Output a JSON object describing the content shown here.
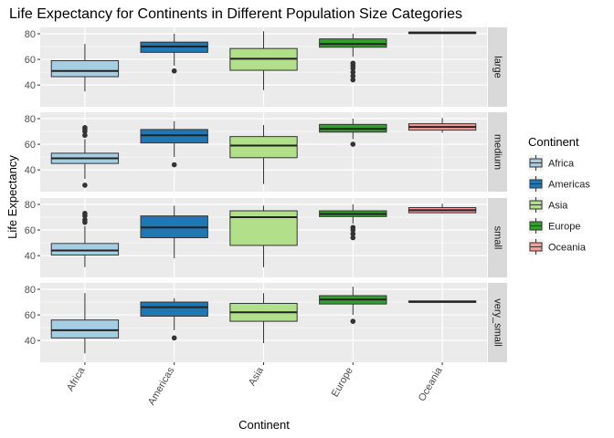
{
  "chart_data": {
    "type": "boxplot",
    "title": "Life Expectancy for Continents in Different Population Size Categories",
    "xlabel": "Continent",
    "ylabel": "Life Expectancy",
    "categories": [
      "Africa",
      "Americas",
      "Asia",
      "Europe",
      "Oceania"
    ],
    "y_ticks": [
      40,
      60,
      80
    ],
    "ylim": [
      23,
      85
    ],
    "grid": true,
    "legend": {
      "title": "Continent",
      "position": "right",
      "entries": [
        {
          "name": "Africa",
          "color": "#a6cee3"
        },
        {
          "name": "Americas",
          "color": "#1f78b4"
        },
        {
          "name": "Asia",
          "color": "#b2df8a"
        },
        {
          "name": "Europe",
          "color": "#33a02c"
        },
        {
          "name": "Oceania",
          "color": "#fb9a99"
        }
      ]
    },
    "facets": [
      {
        "label": "large",
        "boxes": [
          {
            "category": "Africa",
            "min": 35,
            "q1": 46.5,
            "median": 51,
            "q3": 59,
            "max": 72,
            "outliers": []
          },
          {
            "category": "Americas",
            "min": 55,
            "q1": 65.5,
            "median": 70,
            "q3": 73.5,
            "max": 80,
            "outliers": [
              51
            ]
          },
          {
            "category": "Asia",
            "min": 36,
            "q1": 51.5,
            "median": 60.5,
            "q3": 68.5,
            "max": 82,
            "outliers": []
          },
          {
            "category": "Europe",
            "min": 62,
            "q1": 69.5,
            "median": 72,
            "q3": 76,
            "max": 80,
            "outliers": [
              57,
              55,
              53,
              50,
              47,
              44
            ]
          },
          {
            "category": "Oceania",
            "min": 80.5,
            "q1": 80.8,
            "median": 81,
            "q3": 81.2,
            "max": 81.4,
            "outliers": []
          }
        ]
      },
      {
        "label": "medium",
        "boxes": [
          {
            "category": "Africa",
            "min": 33,
            "q1": 45,
            "median": 49,
            "q3": 53,
            "max": 64,
            "outliers": [
              73,
              72,
              70,
              67,
              28
            ]
          },
          {
            "category": "Americas",
            "min": 50,
            "q1": 61,
            "median": 67,
            "q3": 71.5,
            "max": 78,
            "outliers": [
              44
            ]
          },
          {
            "category": "Asia",
            "min": 29,
            "q1": 49.5,
            "median": 59,
            "q3": 66,
            "max": 75,
            "outliers": []
          },
          {
            "category": "Europe",
            "min": 64,
            "q1": 69.5,
            "median": 72,
            "q3": 75.5,
            "max": 80,
            "outliers": [
              60
            ]
          },
          {
            "category": "Oceania",
            "min": 69,
            "q1": 71,
            "median": 73.5,
            "q3": 76,
            "max": 80.5,
            "outliers": []
          }
        ]
      },
      {
        "label": "small",
        "boxes": [
          {
            "category": "Africa",
            "min": 31,
            "q1": 40.5,
            "median": 44,
            "q3": 49.5,
            "max": 63,
            "outliers": [
              73,
              71,
              68,
              66
            ]
          },
          {
            "category": "Americas",
            "min": 38,
            "q1": 54,
            "median": 62,
            "q3": 71,
            "max": 79,
            "outliers": []
          },
          {
            "category": "Asia",
            "min": 31,
            "q1": 48,
            "median": 70,
            "q3": 75,
            "max": 79,
            "outliers": []
          },
          {
            "category": "Europe",
            "min": 65,
            "q1": 70.5,
            "median": 72.5,
            "q3": 75,
            "max": 80,
            "outliers": [
              62,
              60,
              57,
              54
            ]
          },
          {
            "category": "Oceania",
            "min": 73,
            "q1": 73.5,
            "median": 75.5,
            "q3": 77.5,
            "max": 80.5,
            "outliers": []
          }
        ]
      },
      {
        "label": "very_small",
        "boxes": [
          {
            "category": "Africa",
            "min": 30,
            "q1": 42,
            "median": 48,
            "q3": 56,
            "max": 77,
            "outliers": []
          },
          {
            "category": "Americas",
            "min": 48,
            "q1": 59,
            "median": 66,
            "q3": 70,
            "max": 73,
            "outliers": [
              42
            ]
          },
          {
            "category": "Asia",
            "min": 38,
            "q1": 55,
            "median": 62,
            "q3": 69,
            "max": 77,
            "outliers": []
          },
          {
            "category": "Europe",
            "min": 60,
            "q1": 68.5,
            "median": 72,
            "q3": 75,
            "max": 82,
            "outliers": [
              55
            ]
          },
          {
            "category": "Oceania",
            "min": 69.8,
            "q1": 70.2,
            "median": 70.5,
            "q3": 70.8,
            "max": 71.2,
            "outliers": []
          }
        ]
      }
    ]
  }
}
